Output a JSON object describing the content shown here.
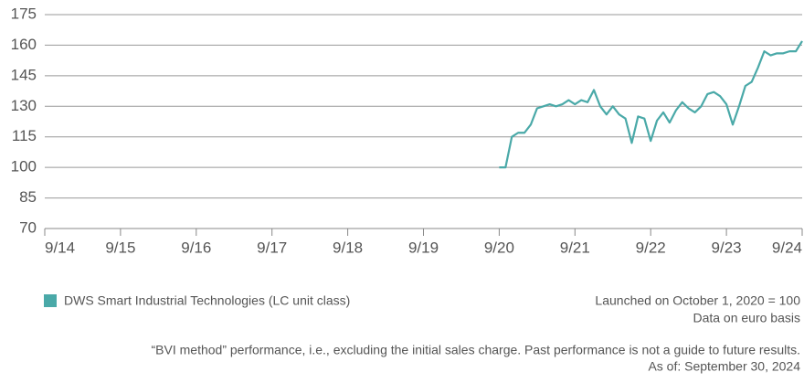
{
  "chart_data": {
    "type": "line",
    "categories": [
      "9/14",
      null,
      null,
      null,
      null,
      null,
      null,
      null,
      null,
      null,
      null,
      null,
      "9/15",
      null,
      null,
      null,
      null,
      null,
      null,
      null,
      null,
      null,
      null,
      null,
      "9/16",
      null,
      null,
      null,
      null,
      null,
      null,
      null,
      null,
      null,
      null,
      null,
      "9/17",
      null,
      null,
      null,
      null,
      null,
      null,
      null,
      null,
      null,
      null,
      null,
      "9/18",
      null,
      null,
      null,
      null,
      null,
      null,
      null,
      null,
      null,
      null,
      null,
      "9/19",
      null,
      null,
      null,
      null,
      null,
      null,
      null,
      null,
      null,
      null,
      null,
      "9/20",
      null,
      null,
      null,
      null,
      null,
      null,
      null,
      null,
      null,
      null,
      null,
      "9/21",
      null,
      null,
      null,
      null,
      null,
      null,
      null,
      null,
      null,
      null,
      null,
      "9/22",
      null,
      null,
      null,
      null,
      null,
      null,
      null,
      null,
      null,
      null,
      null,
      "9/23",
      null,
      null,
      null,
      null,
      null,
      null,
      null,
      null,
      null,
      null,
      null,
      "9/24"
    ],
    "series": [
      {
        "name": "DWS Smart Industrial Technologies (LC unit class)",
        "color": "#4aa9a8",
        "values": [
          null,
          null,
          null,
          null,
          null,
          null,
          null,
          null,
          null,
          null,
          null,
          null,
          null,
          null,
          null,
          null,
          null,
          null,
          null,
          null,
          null,
          null,
          null,
          null,
          null,
          null,
          null,
          null,
          null,
          null,
          null,
          null,
          null,
          null,
          null,
          null,
          null,
          null,
          null,
          null,
          null,
          null,
          null,
          null,
          null,
          null,
          null,
          null,
          null,
          null,
          null,
          null,
          null,
          null,
          null,
          null,
          null,
          null,
          null,
          null,
          null,
          null,
          null,
          null,
          null,
          null,
          null,
          null,
          null,
          null,
          null,
          null,
          100,
          100,
          115,
          117,
          117,
          121,
          129,
          130,
          131,
          130,
          131,
          133,
          131,
          133,
          132,
          138,
          130,
          126,
          130,
          126,
          124,
          112,
          125,
          124,
          113,
          123,
          127,
          122,
          128,
          132,
          129,
          127,
          130,
          136,
          137,
          135,
          131,
          121,
          130,
          140,
          142,
          149,
          157,
          155,
          156,
          156,
          157,
          157,
          162
        ]
      }
    ],
    "ylim": [
      70,
      175
    ],
    "yticks": [
      70,
      85,
      100,
      115,
      130,
      145,
      160,
      175
    ],
    "grid": true,
    "annotations": [
      "Launched on October 1, 2020 = 100",
      "Data on euro basis"
    ],
    "footnotes": [
      "“BVI method” performance, i.e., excluding the initial sales charge. Past performance is not a guide to future results.",
      "As of: September 30, 2024"
    ]
  }
}
